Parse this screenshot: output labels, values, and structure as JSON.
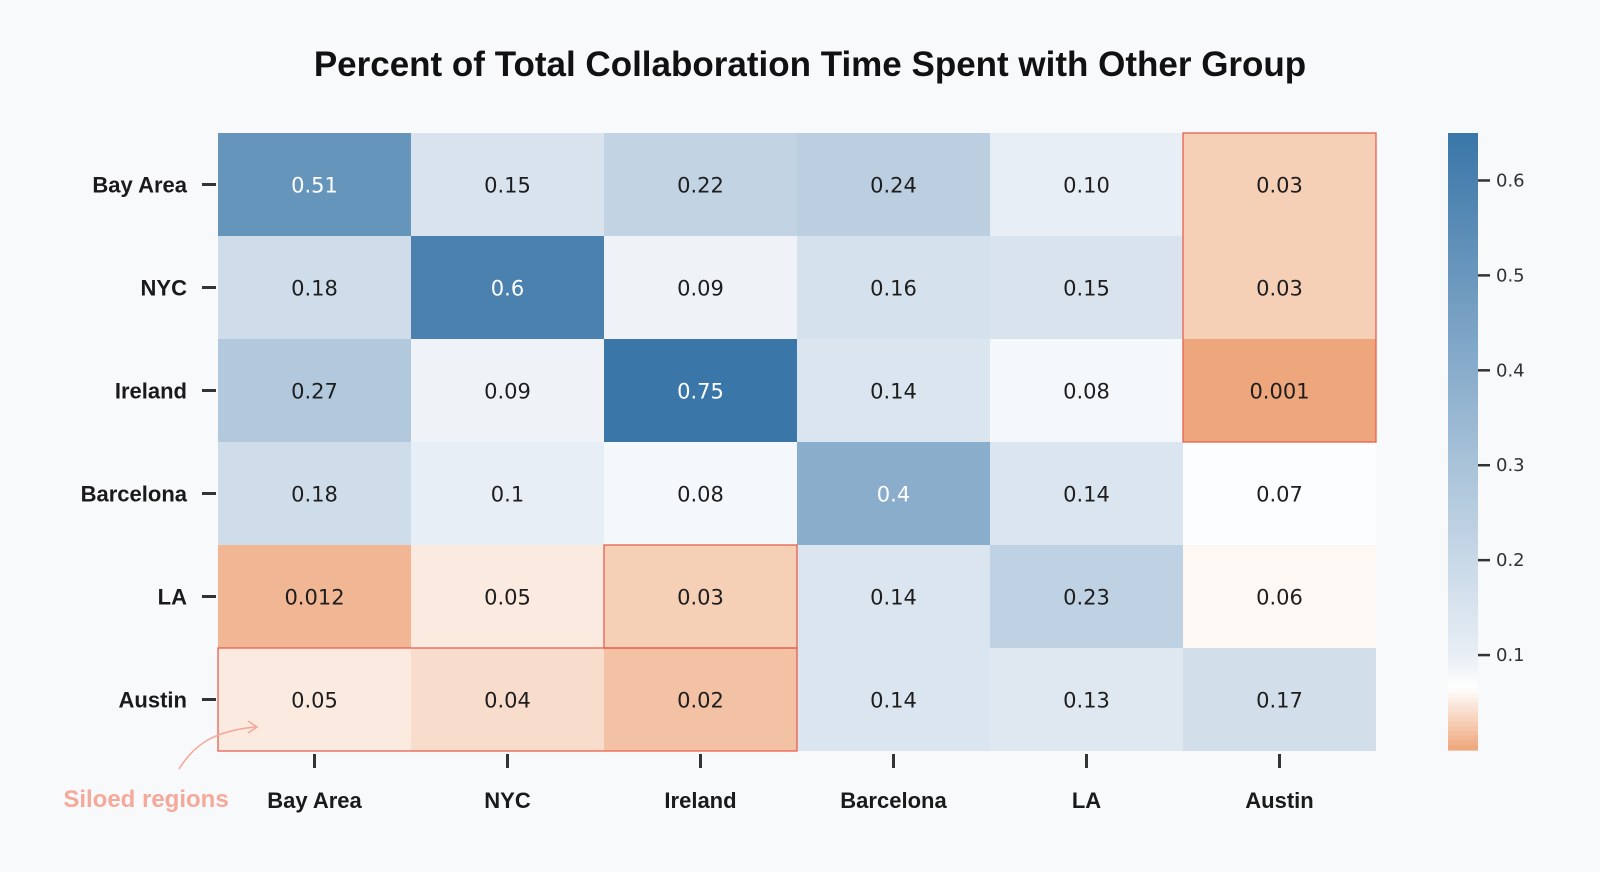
{
  "chart_data": {
    "type": "heatmap",
    "title": "Percent of Total Collaboration Time Spent with Other Group",
    "row_labels": [
      "Bay Area",
      "NYC",
      "Ireland",
      "Barcelona",
      "LA",
      "Austin"
    ],
    "col_labels": [
      "Bay Area",
      "NYC",
      "Ireland",
      "Barcelona",
      "LA",
      "Austin"
    ],
    "cell_labels": [
      [
        "0.51",
        "0.15",
        "0.22",
        "0.24",
        "0.10",
        "0.03"
      ],
      [
        "0.18",
        "0.6",
        "0.09",
        "0.16",
        "0.15",
        "0.03"
      ],
      [
        "0.27",
        "0.09",
        "0.75",
        "0.14",
        "0.08",
        "0.001"
      ],
      [
        "0.18",
        "0.1",
        "0.08",
        "0.4",
        "0.14",
        "0.07"
      ],
      [
        "0.012",
        "0.05",
        "0.03",
        "0.14",
        "0.23",
        "0.06"
      ],
      [
        "0.05",
        "0.04",
        "0.02",
        "0.14",
        "0.13",
        "0.17"
      ]
    ],
    "values": [
      [
        0.51,
        0.15,
        0.22,
        0.24,
        0.1,
        0.03
      ],
      [
        0.18,
        0.6,
        0.09,
        0.16,
        0.15,
        0.03
      ],
      [
        0.27,
        0.09,
        0.75,
        0.14,
        0.08,
        0.001
      ],
      [
        0.18,
        0.1,
        0.08,
        0.4,
        0.14,
        0.07
      ],
      [
        0.012,
        0.05,
        0.03,
        0.14,
        0.23,
        0.06
      ],
      [
        0.05,
        0.04,
        0.02,
        0.14,
        0.13,
        0.17
      ]
    ],
    "colorbar": {
      "range": [
        0.0,
        0.65
      ],
      "ticks": [
        0.1,
        0.2,
        0.3,
        0.4,
        0.5,
        0.6
      ],
      "tick_labels": [
        "0.1",
        "0.2",
        "0.3",
        "0.4",
        "0.5",
        "0.6"
      ]
    },
    "siloed_regions": [
      {
        "row_start": 0,
        "row_end": 2,
        "col_start": 5,
        "col_end": 5
      },
      {
        "row_start": 4,
        "row_end": 4,
        "col_start": 2,
        "col_end": 2
      },
      {
        "row_start": 5,
        "row_end": 5,
        "col_start": 0,
        "col_end": 2
      }
    ],
    "annotation": "Siloed regions"
  },
  "colors": {
    "blue_dark": "#3a76a8",
    "blue_light": "#e8eef5",
    "white": "#ffffff",
    "orange": "#eea67a",
    "silo_border": "#e8604f",
    "annotation": "#f4a99a",
    "text_dark": "#1e1e1e",
    "text_light": "#ffffff"
  }
}
